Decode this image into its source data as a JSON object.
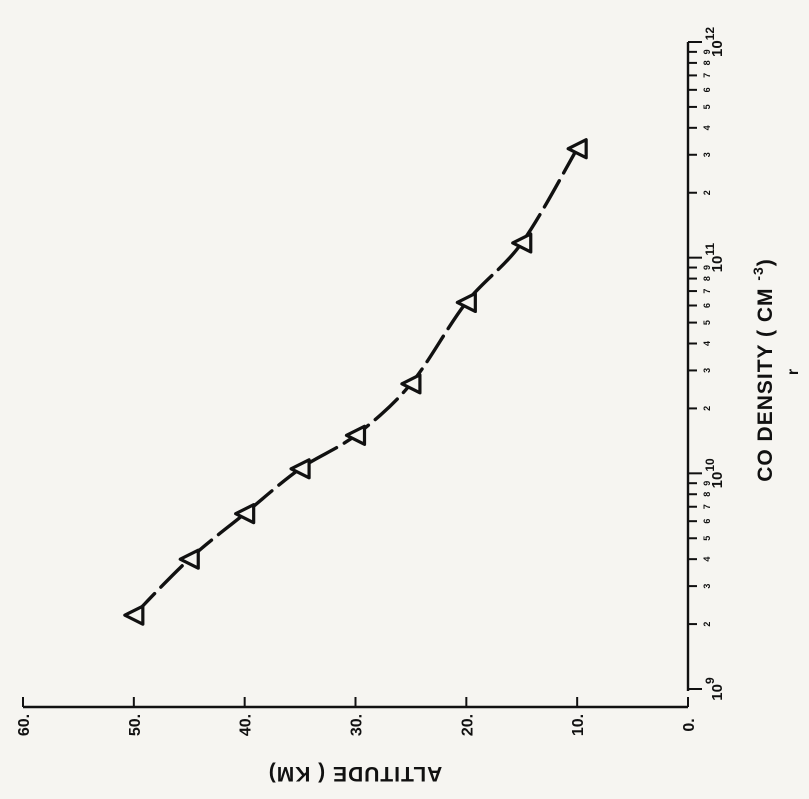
{
  "chart_data": {
    "type": "line",
    "orientation": "rotated 90° (page shown sideways)",
    "xlabel": "CO DENSITY ( CM",
    "xlabel_sup": "-3",
    "xlabel_close": ")",
    "ylabel": "ALTITUDE ( KM)",
    "xscale": "log",
    "xlim": [
      1000000000.0,
      1000000000000.0
    ],
    "ylim": [
      0,
      60
    ],
    "y_ticks": [
      "0.",
      "10.",
      "20.",
      "30.",
      "40.",
      "50.",
      "60."
    ],
    "x_major_ticks": [
      {
        "base": "10",
        "exp": "9"
      },
      {
        "base": "10",
        "exp": "10"
      },
      {
        "base": "10",
        "exp": "11"
      },
      {
        "base": "10",
        "exp": "12"
      }
    ],
    "x_minor_labels": [
      "2",
      "3",
      "4",
      "5",
      "6",
      "7",
      "8",
      "9"
    ],
    "grid": false,
    "marker": "triangle",
    "line_style": "dashed",
    "series": [
      {
        "x": [
          2200000000.0,
          4000000000.0,
          6500000000.0,
          10500000000.0,
          15000000000.0,
          26000000000.0,
          62000000000.0,
          117000000000.0,
          320000000000.0
        ],
        "y": [
          50,
          45,
          40,
          35,
          30,
          25,
          20,
          15,
          10
        ]
      }
    ],
    "stray_mark": "r"
  }
}
